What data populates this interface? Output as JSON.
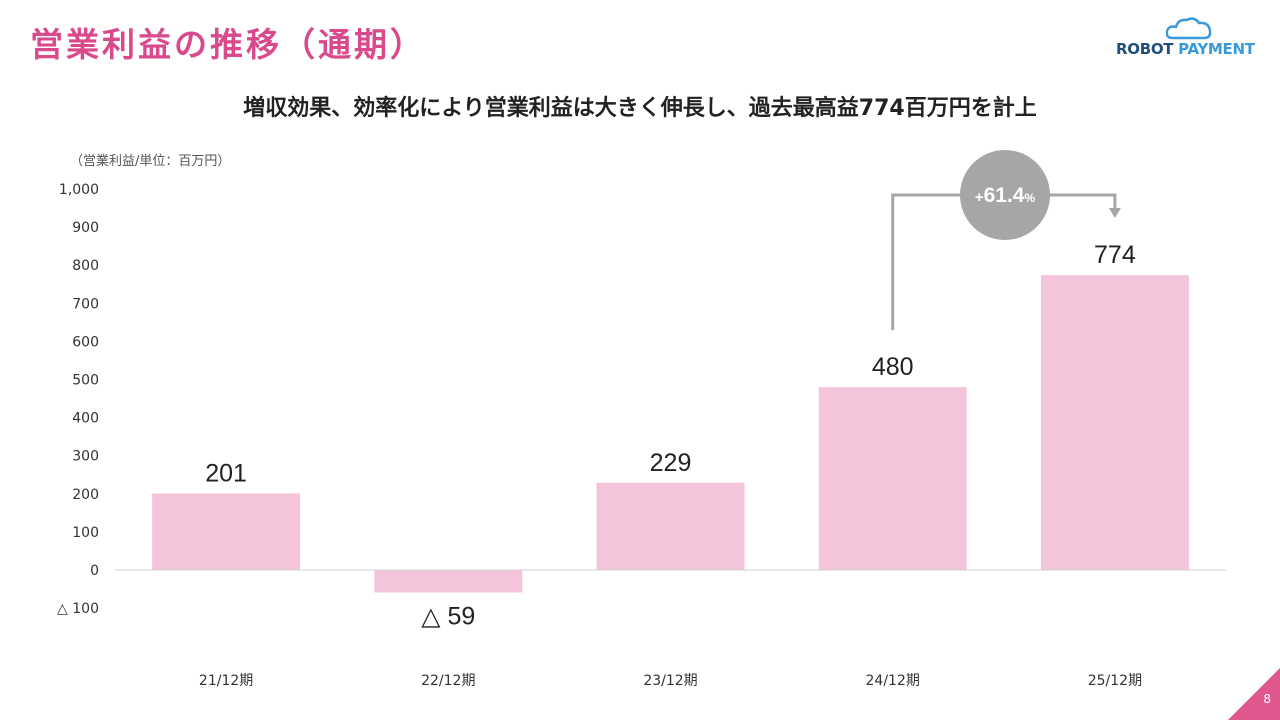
{
  "slide": {
    "title": "営業利益の推移（通期）",
    "subtitle": "増収効果、効率化により営業利益は大きく伸長し、過去最高益774百万円を計上",
    "page_number": "8"
  },
  "logo": {
    "part1": "ROBOT",
    "part2": "PAYMENT"
  },
  "colors": {
    "title": "#d9498c",
    "bar": "#f4c5da",
    "badge": "#a6a6a6",
    "arrow": "#a6a6a6",
    "corner": "#e0578f",
    "logo_dark": "#1f4f7a",
    "logo_accent": "#3a9ad9"
  },
  "chart_data": {
    "type": "bar",
    "ylabel": "（営業利益/単位：百万円）",
    "categories": [
      "21/12期",
      "22/12期",
      "23/12期",
      "24/12期",
      "25/12期"
    ],
    "values": [
      201,
      -59,
      229,
      480,
      774
    ],
    "data_labels": [
      "201",
      "△ 59",
      "229",
      "480",
      "774"
    ],
    "ylim": [
      -100,
      1000
    ],
    "yticks": [
      -100,
      0,
      100,
      200,
      300,
      400,
      500,
      600,
      700,
      800,
      900,
      1000
    ],
    "ytick_labels": [
      "△ 100",
      "0",
      "100",
      "200",
      "300",
      "400",
      "500",
      "600",
      "700",
      "800",
      "900",
      "1,000"
    ],
    "grid": false,
    "annotation": {
      "from_category": "24/12期",
      "to_category": "25/12期",
      "prefix": "+",
      "value": "61.4",
      "suffix": "%"
    }
  }
}
